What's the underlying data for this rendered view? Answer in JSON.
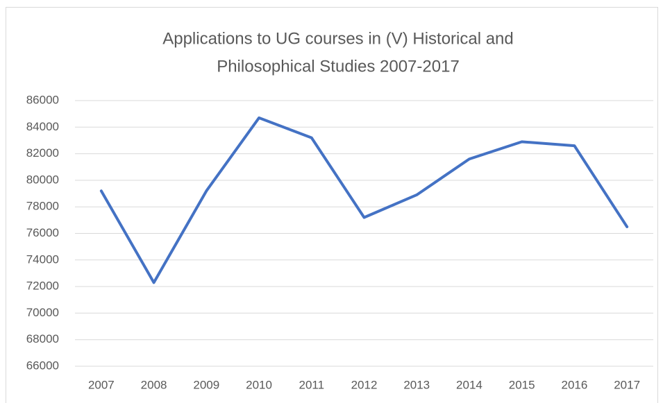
{
  "chart_data": {
    "type": "line",
    "title": [
      "Applications to UG courses in (V) Historical and",
      "Philosophical Studies 2007-2017"
    ],
    "categories": [
      "2007",
      "2008",
      "2009",
      "2010",
      "2011",
      "2012",
      "2013",
      "2014",
      "2015",
      "2016",
      "2017"
    ],
    "series": [
      {
        "color": "#4472c4",
        "values": [
          79200,
          72300,
          79200,
          84700,
          83200,
          77200,
          78900,
          81600,
          82900,
          82600,
          76500
        ]
      }
    ],
    "ylim": [
      66000,
      86000
    ],
    "yticks": [
      66000,
      68000,
      70000,
      72000,
      74000,
      76000,
      78000,
      80000,
      82000,
      84000,
      86000
    ],
    "grid": true
  }
}
